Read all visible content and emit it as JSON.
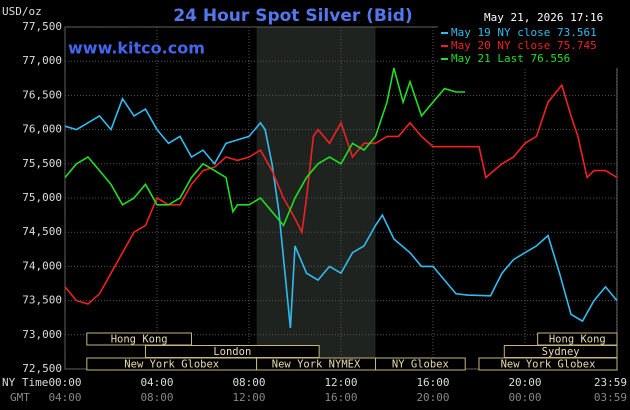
{
  "chart_data": {
    "type": "line",
    "title": "24 Hour Spot Silver (Bid)",
    "timestamp": "May 21, 2026 17:16",
    "watermark": "www.kitco.com",
    "y_label": "USD/oz",
    "x_label": "NY Time",
    "x2_label": "GMT",
    "xlim": [
      0,
      24
    ],
    "ylim": [
      72.5,
      77.5
    ],
    "xticks": [
      {
        "value": 0,
        "label": "00:00"
      },
      {
        "value": 4,
        "label": "04:00"
      },
      {
        "value": 8,
        "label": "08:00"
      },
      {
        "value": 12,
        "label": "12:00"
      },
      {
        "value": 16,
        "label": "16:00"
      },
      {
        "value": 20,
        "label": "20:00"
      },
      {
        "value": 23.983,
        "label": "23:59"
      }
    ],
    "x2ticks": [
      {
        "value": 0,
        "label": "04:00"
      },
      {
        "value": 4,
        "label": "08:00"
      },
      {
        "value": 8,
        "label": "12:00"
      },
      {
        "value": 12,
        "label": "16:00"
      },
      {
        "value": 16,
        "label": "20:00"
      },
      {
        "value": 20,
        "label": "00:00"
      },
      {
        "value": 23.983,
        "label": "03:59"
      }
    ],
    "yticks": [
      {
        "value": 72.5,
        "label": "72,500"
      },
      {
        "value": 73,
        "label": "73,000"
      },
      {
        "value": 73.5,
        "label": "73,500"
      },
      {
        "value": 74,
        "label": "74,000"
      },
      {
        "value": 74.5,
        "label": "74,500"
      },
      {
        "value": 75,
        "label": "75,000"
      },
      {
        "value": 75.5,
        "label": "75,500"
      },
      {
        "value": 76,
        "label": "76,000"
      },
      {
        "value": 76.5,
        "label": "76,500"
      },
      {
        "value": 77,
        "label": "77,000"
      },
      {
        "value": 77.5,
        "label": "77,500"
      }
    ],
    "grid": true,
    "shade": [
      8.33,
      13.5
    ],
    "sessions": [
      [
        {
          "name": "Hong Kong",
          "start": 0.95,
          "end": 5.5
        },
        {
          "name": "Hong Kong",
          "start": 20.55,
          "end": 24
        }
      ],
      [
        {
          "name": "London",
          "start": 3.5,
          "end": 11.05
        },
        {
          "name": "Sydney",
          "start": 19.1,
          "end": 24
        }
      ],
      [
        {
          "name": "New York Globex",
          "start": 0.95,
          "end": 8.33
        },
        {
          "name": "New York NYMEX",
          "start": 8.33,
          "end": 13.5
        },
        {
          "name": "NY Globex",
          "start": 13.5,
          "end": 17.4
        },
        {
          "name": "New York Globex",
          "start": 18,
          "end": 24
        }
      ]
    ],
    "series": [
      {
        "name": "May 19 NY close 73.561",
        "color": "#33bbee",
        "x": [
          0,
          0.5,
          1,
          1.5,
          2,
          2.5,
          3,
          3.5,
          4,
          4.5,
          5,
          5.5,
          6,
          6.5,
          7,
          7.5,
          8,
          8.5,
          8.7,
          9,
          9.3,
          9.8,
          10,
          10.5,
          11,
          11.5,
          12,
          12.5,
          13,
          13.5,
          13.8,
          14.3,
          15,
          15.5,
          16,
          16.5,
          17,
          17.5,
          18.5,
          19,
          19.5,
          20,
          20.5,
          21,
          21.5,
          22,
          22.5,
          23,
          23.5,
          24
        ],
        "values": [
          76.05,
          76.0,
          76.1,
          76.2,
          76.0,
          76.45,
          76.2,
          76.3,
          76.0,
          75.8,
          75.9,
          75.6,
          75.7,
          75.5,
          75.8,
          75.85,
          75.9,
          76.1,
          76.0,
          75.5,
          74.8,
          73.1,
          74.3,
          73.9,
          73.8,
          74.0,
          73.9,
          74.2,
          74.3,
          74.6,
          74.75,
          74.4,
          74.2,
          74.0,
          74.0,
          73.8,
          73.6,
          73.58,
          73.57,
          73.9,
          74.1,
          74.2,
          74.3,
          74.45,
          73.9,
          73.3,
          73.2,
          73.5,
          73.7,
          73.5
        ]
      },
      {
        "name": "May 20 NY close 75.745",
        "color": "#ee2222",
        "x": [
          0,
          0.5,
          1,
          1.5,
          2,
          2.5,
          3,
          3.5,
          4,
          4.5,
          5,
          5.5,
          6,
          6.5,
          7,
          7.5,
          8,
          8.5,
          9,
          9.5,
          10,
          10.3,
          10.5,
          10.8,
          11,
          11.5,
          12,
          12.5,
          13,
          13.5,
          14,
          14.5,
          15,
          15.5,
          16,
          18,
          18.3,
          19,
          19.5,
          20,
          20.5,
          21,
          21.6,
          22,
          22.3,
          22.7,
          23,
          23.5,
          24
        ],
        "values": [
          73.7,
          73.5,
          73.45,
          73.6,
          73.9,
          74.2,
          74.5,
          74.6,
          75.0,
          74.9,
          74.9,
          75.2,
          75.4,
          75.45,
          75.6,
          75.55,
          75.6,
          75.7,
          75.4,
          75.0,
          74.7,
          74.5,
          75.0,
          75.9,
          76.0,
          75.8,
          76.1,
          75.6,
          75.8,
          75.8,
          75.9,
          75.9,
          76.1,
          75.9,
          75.75,
          75.75,
          75.3,
          75.5,
          75.6,
          75.8,
          75.9,
          76.4,
          76.65,
          76.2,
          75.9,
          75.3,
          75.4,
          75.4,
          75.3
        ]
      },
      {
        "name": "May 21 Last 76.556",
        "color": "#22dd22",
        "x": [
          0,
          0.5,
          1,
          1.5,
          2,
          2.5,
          3,
          3.5,
          4,
          4.5,
          5,
          5.5,
          6,
          6.5,
          7,
          7.3,
          7.5,
          8,
          8.5,
          9,
          9.5,
          10,
          10.5,
          11,
          11.5,
          12,
          12.5,
          13,
          13.5,
          14,
          14.3,
          14.7,
          15,
          15.5,
          16,
          16.5,
          17,
          17.4
        ],
        "values": [
          75.3,
          75.5,
          75.6,
          75.4,
          75.2,
          74.9,
          75.0,
          75.2,
          74.9,
          74.9,
          75.0,
          75.3,
          75.5,
          75.4,
          75.3,
          74.8,
          74.9,
          74.9,
          75.0,
          74.8,
          74.6,
          75.0,
          75.3,
          75.5,
          75.6,
          75.5,
          75.8,
          75.7,
          75.9,
          76.4,
          76.9,
          76.4,
          76.7,
          76.2,
          76.4,
          76.6,
          76.55,
          76.55
        ]
      }
    ]
  }
}
